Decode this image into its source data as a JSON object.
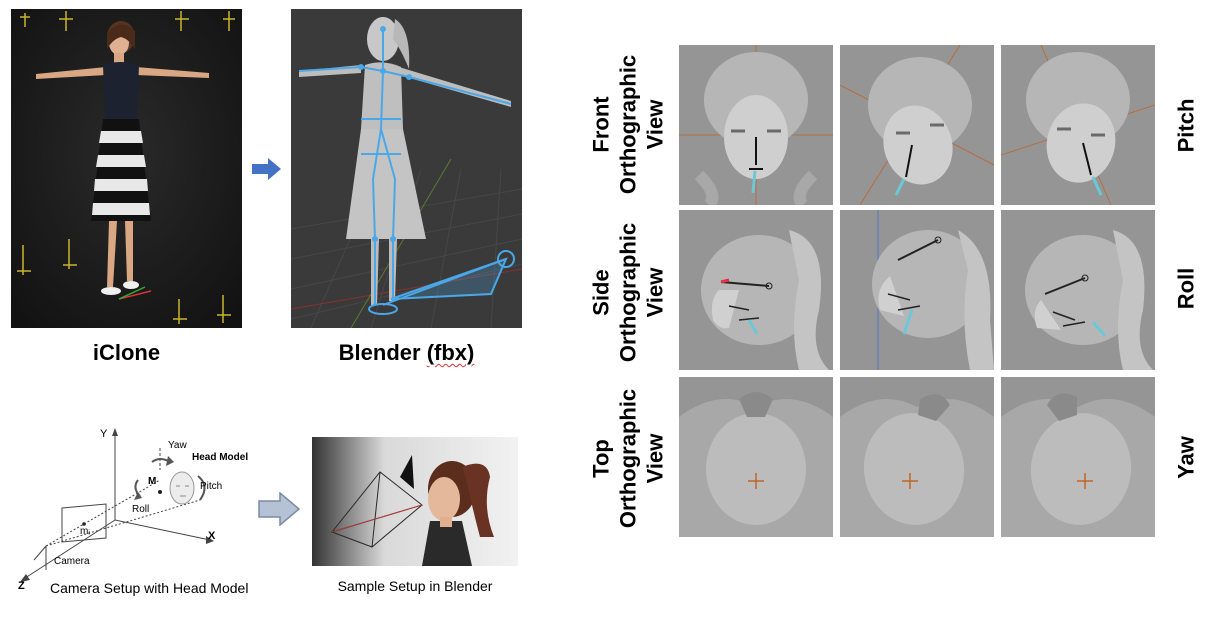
{
  "pipeline": {
    "iclone_caption": "iClone",
    "blender_caption_prefix": "Blender ",
    "blender_caption_suffix": "(fbx)",
    "arrow_color": "#4472c4"
  },
  "camera_setup": {
    "axis_y": "Y",
    "axis_x": "X",
    "axis_z": "Z",
    "yaw_label": "Yaw",
    "head_model_label": "Head Model",
    "pitch_label": "Pitch",
    "roll_label": "Roll",
    "m_label": "M",
    "mi_label": "mᵢ",
    "camera_label": "Camera",
    "caption": "Camera Setup with Head Model"
  },
  "blender_sample": {
    "caption": "Sample Setup in Blender"
  },
  "views": {
    "row_labels": [
      {
        "line1": "Front",
        "line2": "Orthographic",
        "line3": "View"
      },
      {
        "line1": "Side",
        "line2": "Orthographic",
        "line3": "View"
      },
      {
        "line1": "Top",
        "line2": "Orthographic",
        "line3": "View"
      }
    ],
    "rotation_labels": [
      "Pitch",
      "Roll",
      "Yaw"
    ]
  }
}
